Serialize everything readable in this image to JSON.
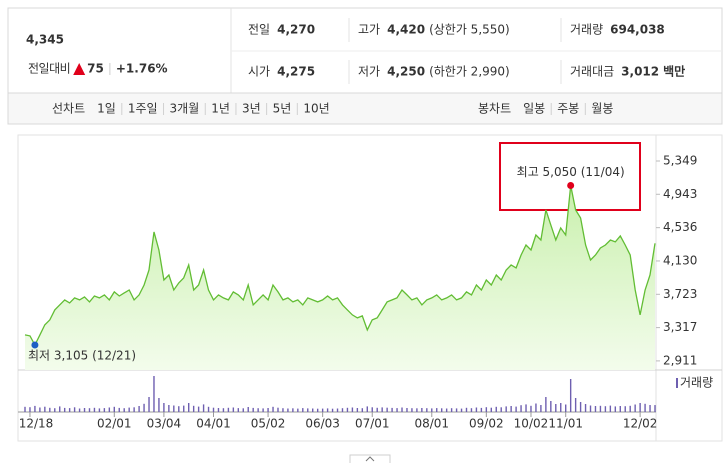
{
  "header": {
    "price": "4,345",
    "change_label": "전일대비",
    "change": "75",
    "change_pct": "+1.76%"
  },
  "stats": [
    {
      "label": "전일",
      "value": "4,270",
      "color": "#222222"
    },
    {
      "label": "고가",
      "value": "4,420",
      "note": "(상한가 5,550)",
      "color": "#e0001b"
    },
    {
      "label": "거래량",
      "value": "694,038",
      "color": "#222222"
    },
    {
      "label": "시가",
      "value": "4,275",
      "color": "#e0001b"
    },
    {
      "label": "저가",
      "value": "4,250",
      "note": "(하한가 2,990)",
      "color": "#1d5fc4"
    },
    {
      "label": "거래대금",
      "value": "3,012",
      "unit": "백만",
      "color": "#222222"
    }
  ],
  "tabs": {
    "line_label": "선차트",
    "periods": [
      "1일",
      "1주일",
      "3개월",
      "1년",
      "3년",
      "5년",
      "10년"
    ],
    "active": "1년",
    "candle_label": "봉차트",
    "candle_periods": [
      "일봉",
      "주봉",
      "월봉"
    ]
  },
  "chart_data": {
    "type": "line",
    "color": "#62bd34",
    "categories": [
      null,
      "12/18",
      null,
      null,
      null,
      null,
      null,
      null,
      null,
      null,
      null,
      null,
      null,
      null,
      null,
      null,
      null,
      null,
      "02/01",
      null,
      null,
      null,
      null,
      null,
      null,
      null,
      null,
      null,
      "03/04",
      null,
      null,
      null,
      null,
      null,
      null,
      null,
      null,
      null,
      "04/01",
      null,
      null,
      null,
      null,
      null,
      null,
      null,
      null,
      null,
      null,
      "05/02",
      null,
      null,
      null,
      null,
      null,
      null,
      null,
      null,
      null,
      null,
      "06/03",
      null,
      null,
      null,
      null,
      null,
      null,
      null,
      null,
      null,
      "07/01",
      null,
      null,
      null,
      null,
      null,
      null,
      null,
      null,
      null,
      null,
      null,
      "08/01",
      null,
      null,
      null,
      null,
      null,
      null,
      null,
      null,
      null,
      null,
      "09/02",
      null,
      null,
      null,
      null,
      null,
      null,
      null,
      null,
      "10/02",
      null,
      null,
      null,
      null,
      null,
      null,
      "11/01",
      null,
      null,
      null,
      null,
      null,
      null,
      null,
      null,
      null,
      null,
      null,
      null,
      null,
      null,
      "12/02",
      null,
      null,
      null
    ],
    "values": [
      3228,
      3216,
      3105,
      3228,
      3350,
      3411,
      3533,
      3594,
      3655,
      3618,
      3679,
      3655,
      3691,
      3630,
      3703,
      3679,
      3716,
      3655,
      3752,
      3703,
      3740,
      3776,
      3655,
      3716,
      3837,
      4020,
      4484,
      4264,
      3898,
      3959,
      3776,
      3862,
      3923,
      4081,
      3776,
      3837,
      4020,
      3776,
      3655,
      3716,
      3679,
      3655,
      3752,
      3716,
      3655,
      3837,
      3594,
      3655,
      3716,
      3655,
      3837,
      3752,
      3655,
      3679,
      3630,
      3655,
      3594,
      3679,
      3655,
      3630,
      3655,
      3703,
      3655,
      3679,
      3594,
      3533,
      3472,
      3435,
      3460,
      3289,
      3411,
      3435,
      3533,
      3630,
      3655,
      3679,
      3776,
      3716,
      3655,
      3679,
      3594,
      3655,
      3679,
      3716,
      3655,
      3679,
      3716,
      3655,
      3679,
      3752,
      3716,
      3837,
      3776,
      3898,
      3837,
      3959,
      3898,
      4020,
      4081,
      4045,
      4203,
      4325,
      4264,
      4447,
      4386,
      4752,
      4569,
      4386,
      4532,
      4447,
      5050,
      4752,
      4654,
      4325,
      4142,
      4203,
      4288,
      4325,
      4386,
      4362,
      4435,
      4325,
      4203,
      3776,
      3472,
      3776,
      3959,
      4345
    ],
    "ylim": [
      2800,
      5605
    ],
    "yticks": [
      {
        "value": 2911,
        "label": "2,911"
      },
      {
        "value": 3317,
        "label": "3,317"
      },
      {
        "value": 3723,
        "label": "3,723"
      },
      {
        "value": 4130,
        "label": "4,130"
      },
      {
        "value": 4536,
        "label": "4,536"
      },
      {
        "value": 4943,
        "label": "4,943"
      },
      {
        "value": 5349,
        "label": "5,349"
      }
    ],
    "grid": false,
    "annotations": {
      "high": "최고 5,050 (11/04)",
      "low": "최저 3,105 (12/21)"
    },
    "volume": {
      "name": "거래량",
      "color": "#6e5fb0",
      "values": [
        520000,
        480000,
        610000,
        450000,
        530000,
        420000,
        380000,
        560000,
        410000,
        390000,
        470000,
        350000,
        400000,
        380000,
        420000,
        360000,
        390000,
        450000,
        520000,
        410000,
        380000,
        440000,
        470000,
        600000,
        820000,
        1500000,
        3600000,
        1400000,
        900000,
        700000,
        650000,
        580000,
        640000,
        900000,
        620000,
        540000,
        760000,
        520000,
        430000,
        400000,
        380000,
        420000,
        450000,
        390000,
        370000,
        500000,
        410000,
        380000,
        360000,
        400000,
        520000,
        430000,
        380000,
        350000,
        370000,
        340000,
        390000,
        360000,
        350000,
        330000,
        340000,
        360000,
        330000,
        350000,
        380000,
        420000,
        450000,
        400000,
        380000,
        560000,
        470000,
        420000,
        460000,
        430000,
        410000,
        390000,
        450000,
        400000,
        380000,
        370000,
        400000,
        380000,
        360000,
        390000,
        370000,
        350000,
        380000,
        360000,
        340000,
        420000,
        380000,
        450000,
        410000,
        480000,
        430000,
        520000,
        470000,
        560000,
        600000,
        540000,
        680000,
        760000,
        620000,
        850000,
        700000,
        1500000,
        1100000,
        800000,
        900000,
        750000,
        3300000,
        1400000,
        1000000,
        800000,
        650000,
        600000,
        620000,
        580000,
        640000,
        560000,
        600000,
        580000,
        620000,
        750000,
        900000,
        820000,
        700000,
        694038
      ]
    }
  }
}
